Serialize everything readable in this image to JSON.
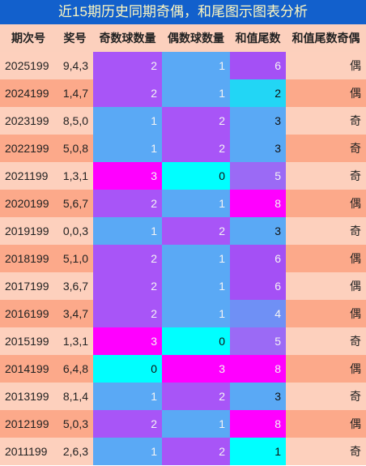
{
  "header": {
    "title": "近15期历史同期奇偶，和尾图示图表分析"
  },
  "table": {
    "columns": [
      "期次号",
      "奖号",
      "奇数球数量",
      "偶数球数量",
      "和值尾数",
      "和值尾数奇偶"
    ],
    "rows": [
      [
        "2025199",
        "9,4,3",
        2,
        1,
        6,
        "偶"
      ],
      [
        "2024199",
        "1,4,7",
        2,
        1,
        2,
        "偶"
      ],
      [
        "2023199",
        "8,5,0",
        1,
        2,
        3,
        "奇"
      ],
      [
        "2022199",
        "5,0,8",
        1,
        2,
        3,
        "奇"
      ],
      [
        "2021199",
        "1,3,1",
        3,
        0,
        5,
        "奇"
      ],
      [
        "2020199",
        "5,6,7",
        2,
        1,
        8,
        "偶"
      ],
      [
        "2019199",
        "0,0,3",
        1,
        2,
        3,
        "奇"
      ],
      [
        "2018199",
        "5,1,0",
        2,
        1,
        6,
        "偶"
      ],
      [
        "2017199",
        "3,6,7",
        2,
        1,
        6,
        "偶"
      ],
      [
        "2016199",
        "3,4,7",
        2,
        1,
        4,
        "偶"
      ],
      [
        "2015199",
        "1,3,1",
        3,
        0,
        5,
        "奇"
      ],
      [
        "2014199",
        "6,4,8",
        0,
        3,
        8,
        "偶"
      ],
      [
        "2013199",
        "8,1,4",
        1,
        2,
        3,
        "奇"
      ],
      [
        "2012199",
        "5,0,3",
        2,
        1,
        8,
        "偶"
      ],
      [
        "2011199",
        "2,6,3",
        1,
        2,
        1,
        "奇"
      ]
    ]
  }
}
